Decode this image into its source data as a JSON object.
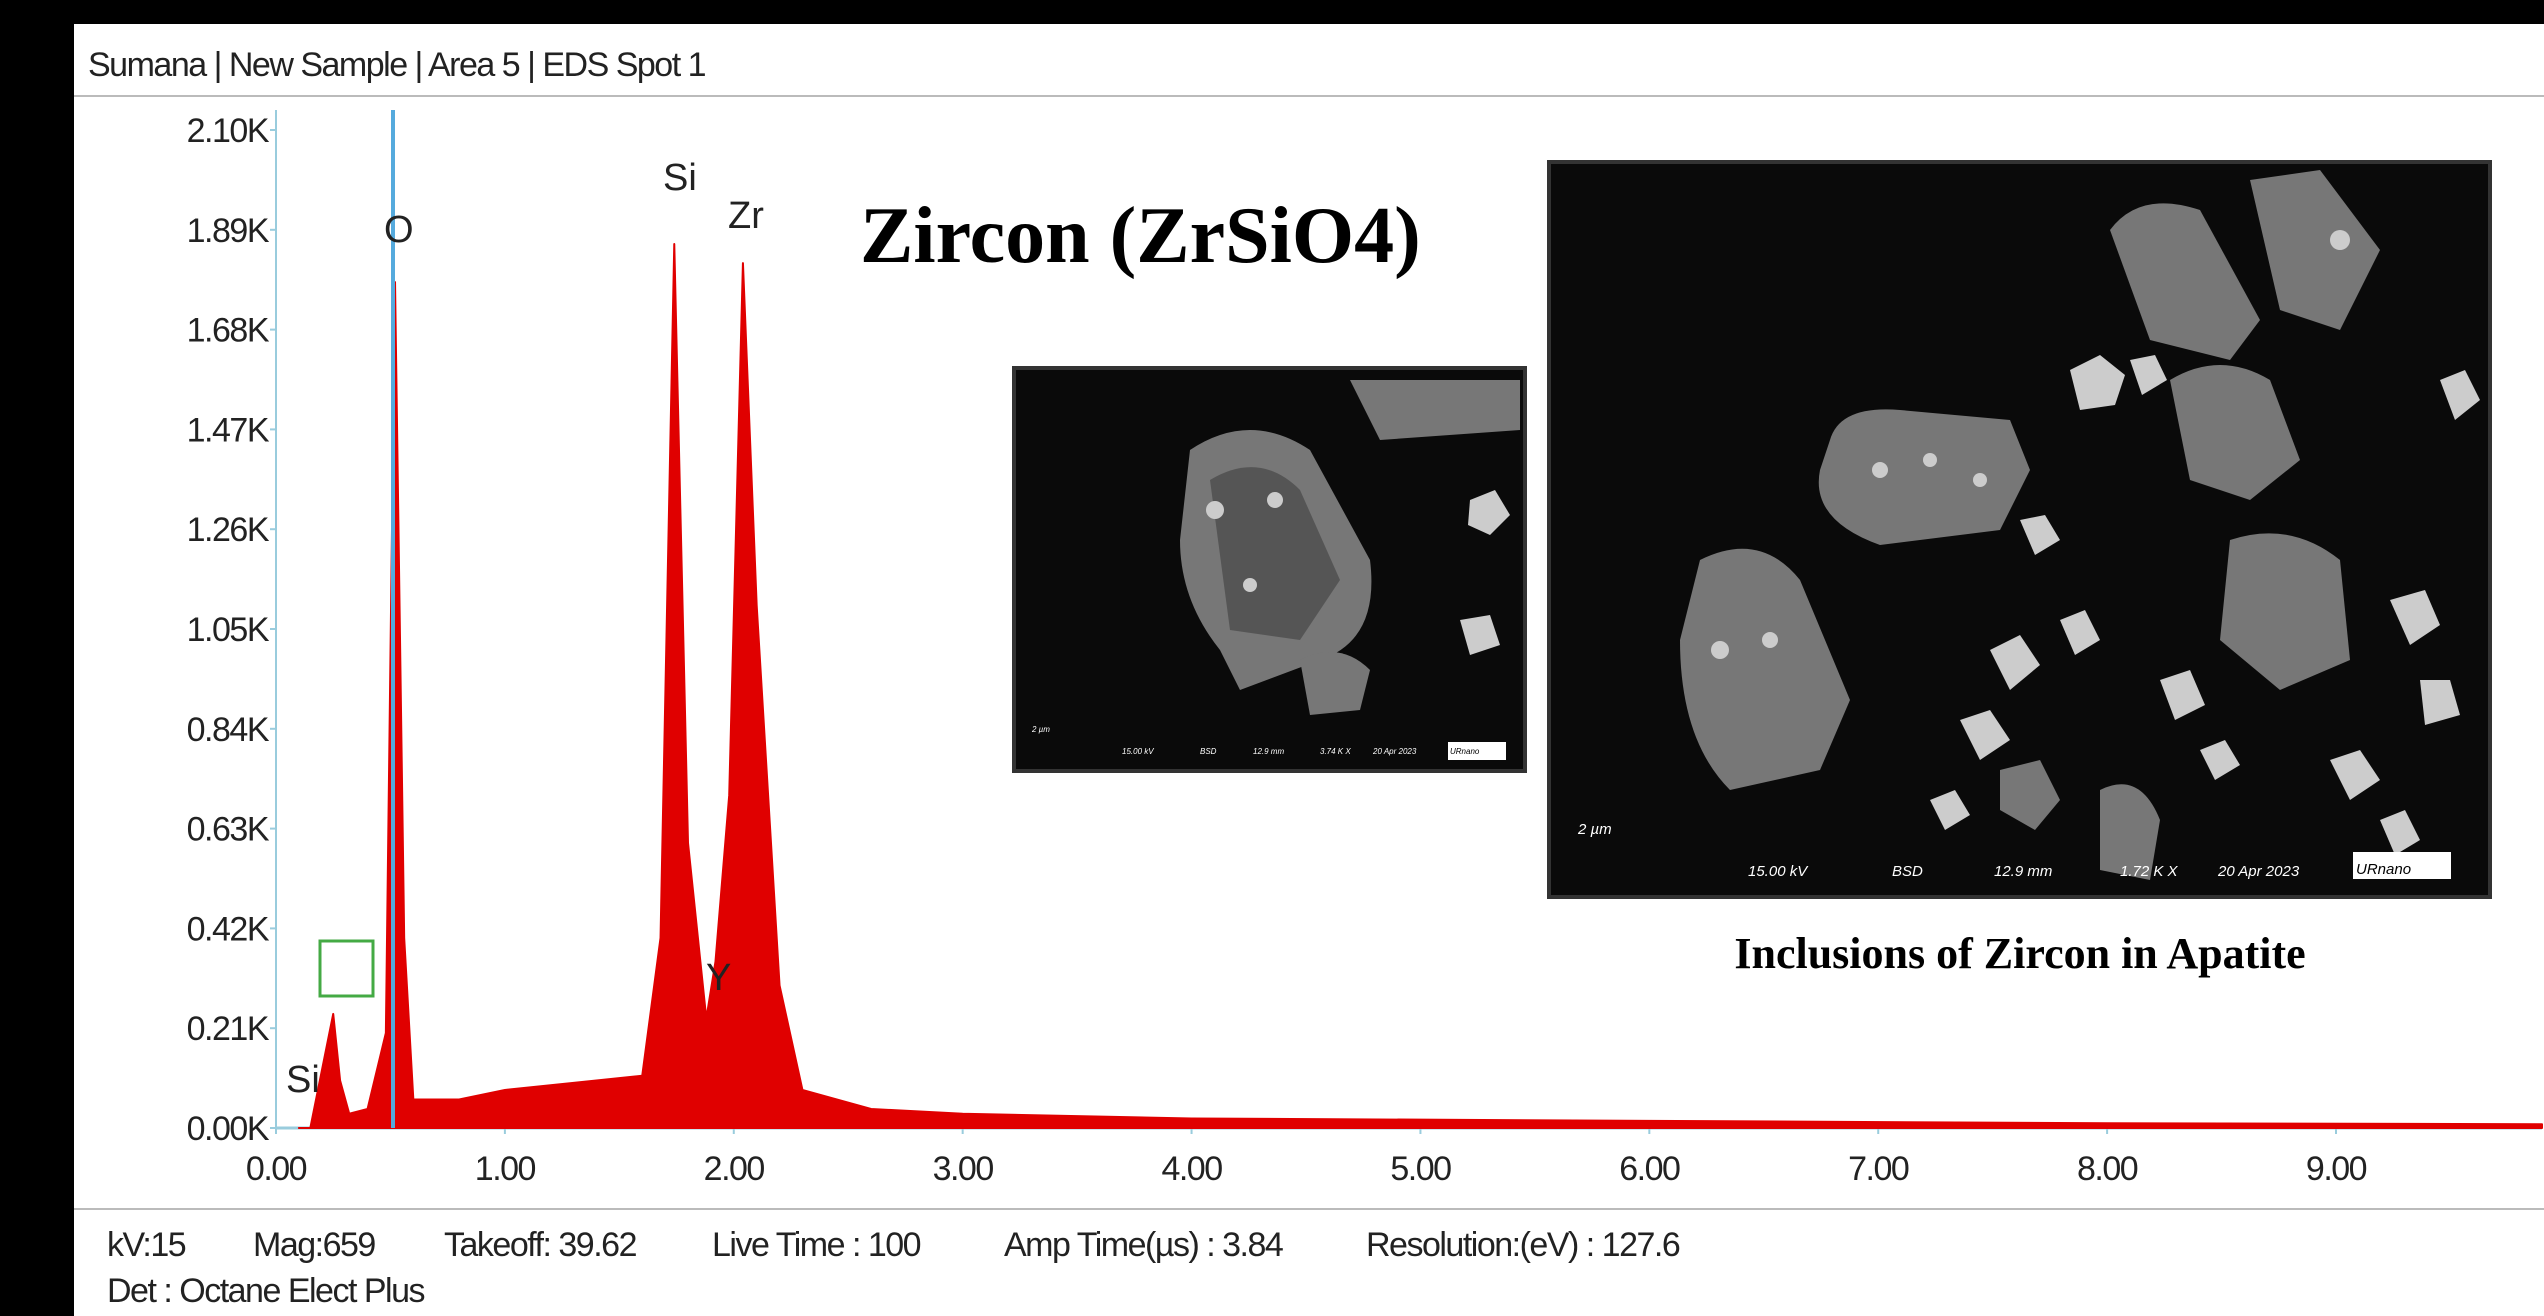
{
  "header": "Sumana | New Sample | Area 5 | EDS Spot 1",
  "chart_data": {
    "type": "area",
    "title": "Zircon (ZrSiO4)",
    "color": "#e00000",
    "annotations": [
      "Si",
      "O",
      "Si",
      "Zr",
      "Y"
    ],
    "x": [
      0.1,
      0.15,
      0.2,
      0.25,
      0.28,
      0.32,
      0.4,
      0.48,
      0.52,
      0.56,
      0.6,
      0.8,
      1.0,
      1.3,
      1.6,
      1.68,
      1.74,
      1.8,
      1.88,
      1.92,
      1.98,
      2.04,
      2.1,
      2.2,
      2.3,
      2.6,
      3.0,
      4.0,
      6.0,
      8.0,
      9.9
    ],
    "values": [
      0,
      0,
      120,
      240,
      100,
      30,
      40,
      200,
      1780,
      400,
      60,
      60,
      80,
      95,
      110,
      400,
      1860,
      600,
      230,
      350,
      700,
      1820,
      1100,
      300,
      80,
      40,
      30,
      20,
      15,
      10,
      8
    ],
    "xlim": [
      0,
      9.9
    ],
    "ylim": [
      0,
      2100
    ],
    "xticks": [
      {
        "value": 0,
        "label": "0.00"
      },
      {
        "value": 1,
        "label": "1.00"
      },
      {
        "value": 2,
        "label": "2.00"
      },
      {
        "value": 3,
        "label": "3.00"
      },
      {
        "value": 4,
        "label": "4.00"
      },
      {
        "value": 5,
        "label": "5.00"
      },
      {
        "value": 6,
        "label": "6.00"
      },
      {
        "value": 7,
        "label": "7.00"
      },
      {
        "value": 8,
        "label": "8.00"
      },
      {
        "value": 9,
        "label": "9.00"
      }
    ],
    "yticks": [
      {
        "value": 0,
        "label": "0.00K"
      },
      {
        "value": 210,
        "label": "0.21K"
      },
      {
        "value": 420,
        "label": "0.42K"
      },
      {
        "value": 630,
        "label": "0.63K"
      },
      {
        "value": 840,
        "label": "0.84K"
      },
      {
        "value": 1050,
        "label": "1.05K"
      },
      {
        "value": 1260,
        "label": "1.26K"
      },
      {
        "value": 1470,
        "label": "1.47K"
      },
      {
        "value": 1680,
        "label": "1.68K"
      },
      {
        "value": 1890,
        "label": "1.89K"
      },
      {
        "value": 2100,
        "label": "2.10K"
      }
    ]
  },
  "caption": "Inclusions of Zircon in Apatite",
  "insets": [
    {
      "scale": "2 µm",
      "labels": [
        "15.00 kV",
        "BSD",
        "12.9 mm",
        "3.74 K X",
        "20 Apr 2023",
        "URnano"
      ]
    },
    {
      "scale": "2 µm",
      "labels": [
        "15.00 kV",
        "BSD",
        "12.9 mm",
        "1.72 K X",
        "20 Apr 2023",
        "URnano"
      ]
    }
  ],
  "footer": [
    "kV:15",
    "Mag:659",
    "Takeoff: 39.62",
    "Live Time : 100",
    "Amp Time(µs) : 3.84",
    "Resolution:(eV) : 127.6",
    "Det : Octane Elect Plus"
  ]
}
